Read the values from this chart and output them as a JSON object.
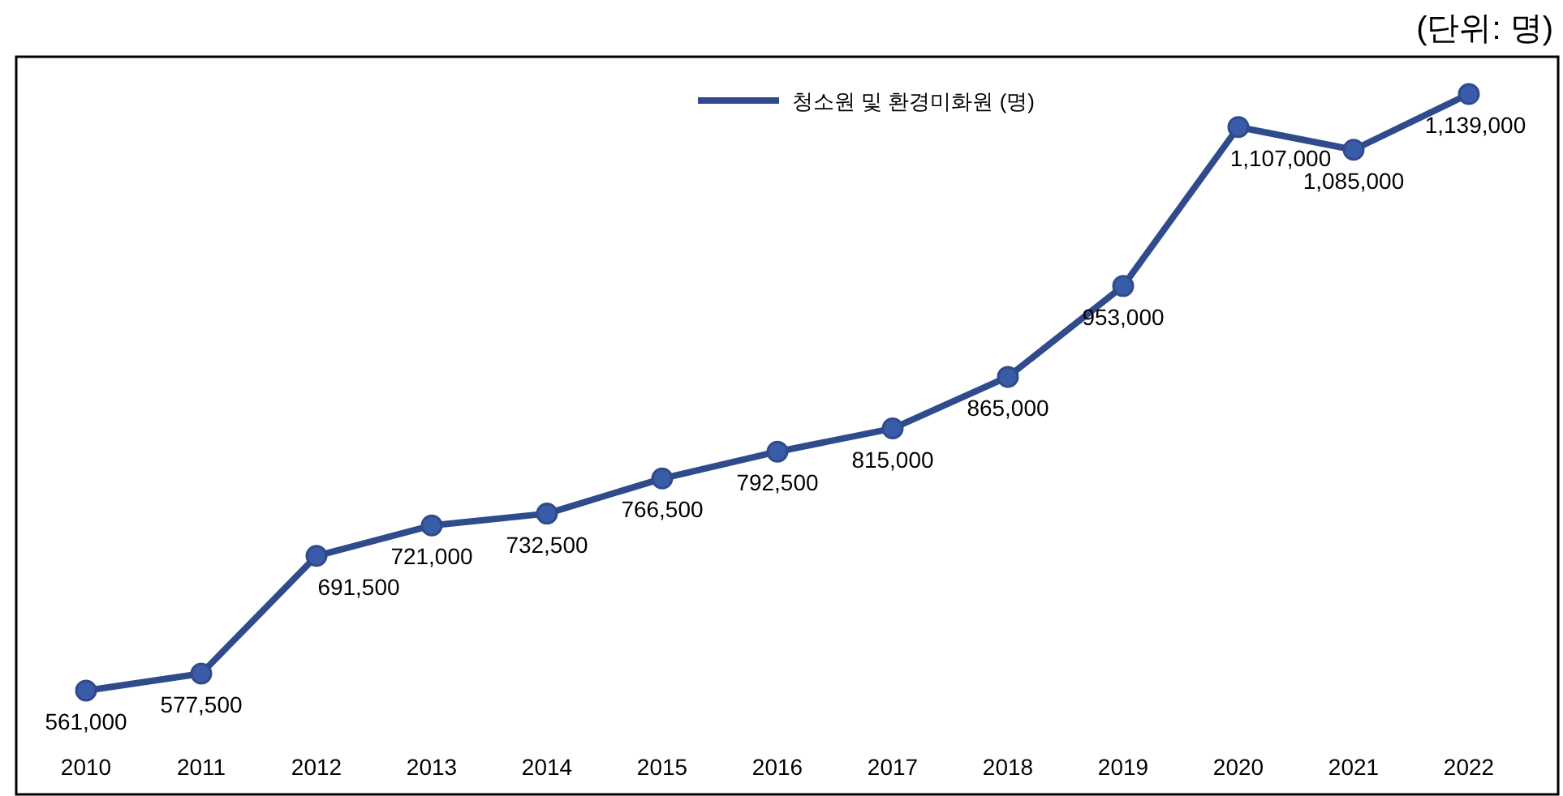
{
  "chart_data": {
    "type": "line",
    "categories": [
      "2010",
      "2011",
      "2012",
      "2013",
      "2014",
      "2015",
      "2016",
      "2017",
      "2018",
      "2019",
      "2020",
      "2021",
      "2022"
    ],
    "series": [
      {
        "name": "청소원 및 환경미화원 (명)",
        "color": "#2f4b8c",
        "values": [
          561000,
          577500,
          691500,
          721000,
          732500,
          766500,
          792500,
          815000,
          865000,
          953000,
          1107000,
          1085000,
          1139000
        ],
        "value_labels": [
          "561,000",
          "577,500",
          "691,500",
          "721,000",
          "732,500",
          "766,500",
          "792,500",
          "815,000",
          "865,000",
          "953,000",
          "1,107,000",
          "1,085,000",
          "1,139,000"
        ]
      }
    ],
    "marker": "circle",
    "legend": "top",
    "annotations": [
      "(단위: 명)"
    ]
  }
}
